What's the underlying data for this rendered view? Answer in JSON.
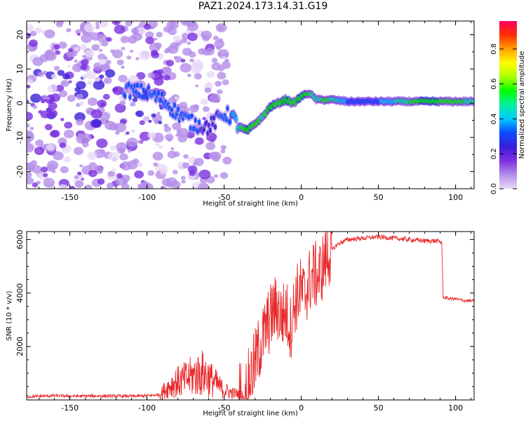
{
  "figure": {
    "title": "PAZ1.2024.173.14.31.G19"
  },
  "chart_data": [
    {
      "type": "heatmap",
      "xlabel": "Height of straight line (km)",
      "ylabel": "Frequency (Hz)",
      "xlim": [
        -178,
        112
      ],
      "ylim": [
        -25,
        24
      ],
      "xticks": [
        -150,
        -100,
        -50,
        0,
        50,
        100
      ],
      "yticks": [
        -20,
        -10,
        0,
        10,
        20
      ],
      "colorbar": {
        "label": "Normalized spectral amplitude",
        "range": [
          0,
          0.96
        ],
        "ticks": [
          "0.0",
          "0.2",
          "0.4",
          "0.6",
          "0.8"
        ],
        "tick_values": [
          0.0,
          0.2,
          0.4,
          0.6,
          0.8
        ],
        "colormap": [
          "#e9d9f7",
          "#b58ee9",
          "#7b30e0",
          "#3a1fd8",
          "#0a4bff",
          "#00c8ff",
          "#00f0a0",
          "#00ff00",
          "#a8ff00",
          "#ffff00",
          "#ffa000",
          "#ff3000",
          "#ff0060"
        ]
      },
      "ridge": {
        "description_points_x": [
          -115,
          -100,
          -90,
          -80,
          -70,
          -60,
          -50,
          -45,
          -40,
          -35,
          -30,
          -25,
          -20,
          -15,
          -10,
          -5,
          0,
          5,
          10,
          15,
          20,
          30,
          50,
          80,
          112
        ],
        "frequency_y": [
          4,
          3,
          1,
          -3,
          -6,
          -7,
          -3,
          -4,
          -7,
          -8,
          -6,
          -4,
          -1,
          0,
          1,
          0,
          2,
          3,
          1,
          1,
          1,
          0.5,
          0.5,
          0.5,
          0.5
        ],
        "peak_amplitude": [
          0.3,
          0.35,
          0.3,
          0.3,
          0.3,
          0.25,
          0.3,
          0.35,
          0.5,
          0.6,
          0.55,
          0.5,
          0.6,
          0.55,
          0.6,
          0.55,
          0.6,
          0.55,
          0.45,
          0.55,
          0.5,
          0.35,
          0.35,
          0.6,
          0.5
        ]
      }
    },
    {
      "type": "line",
      "xlabel": "Height of straight line (km)",
      "ylabel": "SNR (10 * v/v)",
      "xlim": [
        -178,
        112
      ],
      "ylim": [
        0,
        6300
      ],
      "xticks": [
        -150,
        -100,
        -50,
        0,
        50,
        100
      ],
      "yticks": [
        2000,
        4000,
        6000
      ],
      "color": "#e8282a",
      "series": [
        {
          "x": [
            -178,
            -160,
            -150,
            -130,
            -110,
            -100,
            -92,
            -87,
            -82,
            -78,
            -74,
            -70,
            -67,
            -64,
            -61,
            -58,
            -55,
            -52,
            -48,
            -44,
            -40,
            -36,
            -34,
            -31,
            -28,
            -25,
            -22,
            -19,
            -16,
            -13,
            -10,
            -7,
            -4,
            -1,
            2,
            5,
            8,
            11,
            14,
            17,
            20,
            23,
            26,
            30,
            40,
            50,
            60,
            70,
            80,
            88,
            91,
            92,
            95,
            100,
            105,
            112
          ],
          "y": [
            120,
            160,
            140,
            150,
            140,
            160,
            200,
            450,
            650,
            700,
            800,
            900,
            950,
            1000,
            900,
            750,
            600,
            450,
            320,
            250,
            220,
            250,
            700,
            1200,
            1800,
            2300,
            2800,
            3200,
            3500,
            3100,
            3300,
            2700,
            3700,
            4100,
            3900,
            4400,
            4700,
            4600,
            5000,
            5400,
            5600,
            5800,
            5900,
            6000,
            6050,
            6100,
            6050,
            6000,
            5950,
            5950,
            5900,
            3850,
            3800,
            3780,
            3720,
            3700
          ]
        }
      ]
    }
  ]
}
